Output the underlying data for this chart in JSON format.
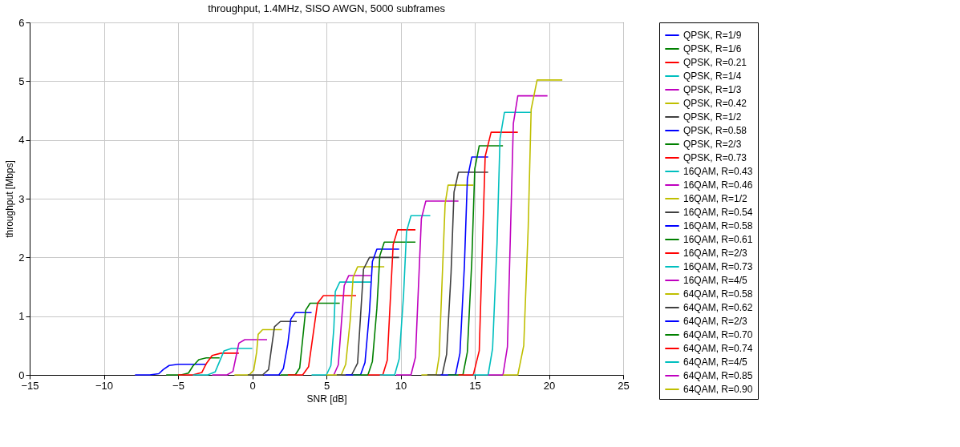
{
  "chart_data": {
    "type": "line",
    "title": "throughput, 1.4MHz, SISO AWGN, 5000 subframes",
    "xlabel": "SNR [dB]",
    "ylabel": "throughput [Mbps]",
    "xlim": [
      -15,
      25
    ],
    "xticks": [
      -15,
      -10,
      -5,
      0,
      5,
      10,
      15,
      20,
      25
    ],
    "ylim": [
      0,
      6
    ],
    "yticks": [
      0,
      1,
      2,
      3,
      4,
      5,
      6
    ],
    "grid": true,
    "legend": "right",
    "line_style": "solid",
    "series": [
      {
        "name": "QPSK, R=1/9",
        "color": "#0000ff",
        "x": [
          -7.9,
          -6.9,
          -6.3,
          -6.0,
          -5.6,
          -5.0,
          -3.1
        ],
        "values": [
          0,
          0,
          0.02,
          0.09,
          0.16,
          0.18,
          0.18
        ]
      },
      {
        "name": "QPSK, R=1/6",
        "color": "#008000",
        "x": [
          -5.8,
          -4.8,
          -4.3,
          -4.0,
          -3.6,
          -3.1,
          -2.2
        ],
        "values": [
          0,
          0,
          0.03,
          0.15,
          0.26,
          0.29,
          0.29
        ]
      },
      {
        "name": "QPSK, R=0.21",
        "color": "#ff0000",
        "x": [
          -5.0,
          -4.0,
          -3.4,
          -3.1,
          -2.7,
          -2.1,
          -0.9
        ],
        "values": [
          0,
          0,
          0.04,
          0.19,
          0.33,
          0.37,
          0.37
        ]
      },
      {
        "name": "QPSK, R=1/4",
        "color": "#00bfbf",
        "x": [
          -4.0,
          -3.0,
          -2.5,
          -2.2,
          -1.9,
          -1.4,
          0.0
        ],
        "values": [
          0,
          0,
          0.05,
          0.23,
          0.41,
          0.45,
          0.45
        ]
      },
      {
        "name": "QPSK, R=1/3",
        "color": "#bf00bf",
        "x": [
          -2.7,
          -1.7,
          -1.3,
          -1.1,
          -0.9,
          -0.5,
          1.0
        ],
        "values": [
          0,
          0,
          0.06,
          0.3,
          0.54,
          0.6,
          0.6
        ]
      },
      {
        "name": "QPSK, R=0.42",
        "color": "#bfbf00",
        "x": [
          -1.2,
          -0.2,
          0.1,
          0.3,
          0.4,
          0.7,
          2.0
        ],
        "values": [
          0,
          0,
          0.08,
          0.39,
          0.69,
          0.77,
          0.77
        ]
      },
      {
        "name": "QPSK, R=1/2",
        "color": "#404040",
        "x": [
          -0.3,
          0.7,
          1.1,
          1.3,
          1.5,
          1.9,
          3.0
        ],
        "values": [
          0,
          0,
          0.09,
          0.46,
          0.82,
          0.91,
          0.91
        ]
      },
      {
        "name": "QPSK, R=0.58",
        "color": "#0000ff",
        "x": [
          0.8,
          1.8,
          2.1,
          2.4,
          2.6,
          2.9,
          4.0
        ],
        "values": [
          0,
          0,
          0.11,
          0.53,
          0.95,
          1.06,
          1.06
        ]
      },
      {
        "name": "QPSK, R=2/3",
        "color": "#008000",
        "x": [
          1.9,
          2.9,
          3.2,
          3.4,
          3.6,
          3.9,
          5.9
        ],
        "values": [
          0,
          0,
          0.12,
          0.61,
          1.1,
          1.22,
          1.22
        ]
      },
      {
        "name": "QPSK, R=0.73",
        "color": "#ff0000",
        "x": [
          2.4,
          3.4,
          3.8,
          4.1,
          4.4,
          4.8,
          7.0
        ],
        "values": [
          0,
          0,
          0.14,
          0.68,
          1.22,
          1.35,
          1.35
        ]
      },
      {
        "name": "16QAM, R=0.43",
        "color": "#00bfbf",
        "x": [
          4.0,
          5.0,
          5.3,
          5.5,
          5.6,
          5.9,
          8.0
        ],
        "values": [
          0,
          0,
          0.16,
          0.79,
          1.42,
          1.58,
          1.58
        ]
      },
      {
        "name": "16QAM, R=0.46",
        "color": "#bf00bf",
        "x": [
          5.5,
          5.8,
          6.0,
          6.2,
          6.5,
          8.0
        ],
        "values": [
          0,
          0.17,
          0.85,
          1.52,
          1.69,
          1.69
        ]
      },
      {
        "name": "16QAM, R=1/2",
        "color": "#bfbf00",
        "x": [
          5.0,
          6.0,
          6.3,
          6.6,
          6.8,
          7.1,
          8.9
        ],
        "values": [
          0,
          0,
          0.18,
          0.92,
          1.66,
          1.84,
          1.84
        ]
      },
      {
        "name": "16QAM, R=0.54",
        "color": "#404040",
        "x": [
          5.7,
          6.7,
          7.1,
          7.3,
          7.5,
          7.9,
          9.9
        ],
        "values": [
          0,
          0,
          0.2,
          1.0,
          1.8,
          2.0,
          2.0
        ]
      },
      {
        "name": "16QAM, R=0.58",
        "color": "#0000ff",
        "x": [
          6.3,
          7.3,
          7.6,
          7.9,
          8.1,
          8.4,
          9.9
        ],
        "values": [
          0,
          0,
          0.21,
          1.07,
          1.93,
          2.14,
          2.14
        ]
      },
      {
        "name": "16QAM, R=0.61",
        "color": "#008000",
        "x": [
          6.8,
          7.8,
          8.1,
          8.4,
          8.6,
          8.9,
          11.0
        ],
        "values": [
          0,
          0,
          0.23,
          1.13,
          2.03,
          2.26,
          2.26
        ]
      },
      {
        "name": "16QAM, R=2/3",
        "color": "#ff0000",
        "x": [
          7.8,
          8.8,
          9.1,
          9.3,
          9.5,
          9.8,
          11.0
        ],
        "values": [
          0,
          0,
          0.25,
          1.24,
          2.22,
          2.47,
          2.47
        ]
      },
      {
        "name": "16QAM, R=0.73",
        "color": "#00bfbf",
        "x": [
          8.6,
          9.6,
          9.9,
          10.2,
          10.4,
          10.7,
          12.0
        ],
        "values": [
          0,
          0,
          0.27,
          1.36,
          2.44,
          2.71,
          2.71
        ]
      },
      {
        "name": "16QAM, R=4/5",
        "color": "#bf00bf",
        "x": [
          9.7,
          10.7,
          11.0,
          11.2,
          11.4,
          11.7,
          13.9
        ],
        "values": [
          0,
          0,
          0.3,
          1.48,
          2.66,
          2.96,
          2.96
        ]
      },
      {
        "name": "64QAM, R=0.58",
        "color": "#bfbf00",
        "x": [
          11.4,
          12.4,
          12.6,
          12.8,
          13.0,
          13.2,
          14.9
        ],
        "values": [
          0,
          0,
          0.32,
          1.62,
          2.91,
          3.23,
          3.23
        ]
      },
      {
        "name": "64QAM, R=0.62",
        "color": "#404040",
        "x": [
          11.8,
          12.8,
          13.1,
          13.4,
          13.6,
          13.9,
          15.9
        ],
        "values": [
          0,
          0,
          0.35,
          1.73,
          3.11,
          3.45,
          3.45
        ]
      },
      {
        "name": "64QAM, R=2/3",
        "color": "#0000ff",
        "x": [
          12.7,
          13.7,
          14.0,
          14.3,
          14.5,
          14.8,
          15.9
        ],
        "values": [
          0,
          0,
          0.37,
          1.86,
          3.34,
          3.71,
          3.71
        ]
      },
      {
        "name": "64QAM, R=0.70",
        "color": "#008000",
        "x": [
          13.2,
          14.2,
          14.5,
          14.8,
          15.0,
          15.3,
          16.9
        ],
        "values": [
          0,
          0,
          0.39,
          1.95,
          3.51,
          3.9,
          3.9
        ]
      },
      {
        "name": "64QAM, R=0.74",
        "color": "#ff0000",
        "x": [
          13.9,
          14.9,
          15.3,
          15.5,
          15.7,
          16.1,
          17.9
        ],
        "values": [
          0,
          0,
          0.41,
          2.07,
          3.72,
          4.13,
          4.13
        ]
      },
      {
        "name": "64QAM, R=4/5",
        "color": "#00bfbf",
        "x": [
          14.9,
          15.9,
          16.2,
          16.5,
          16.7,
          17.0,
          18.8
        ],
        "values": [
          0,
          0,
          0.45,
          2.24,
          4.02,
          4.47,
          4.47
        ]
      },
      {
        "name": "64QAM, R=0.85",
        "color": "#bf00bf",
        "x": [
          15.9,
          16.9,
          17.2,
          17.4,
          17.6,
          17.9,
          19.9
        ],
        "values": [
          0,
          0,
          0.48,
          2.38,
          4.28,
          4.75,
          4.75
        ]
      },
      {
        "name": "64QAM, R=0.90",
        "color": "#bfbf00",
        "x": [
          16.9,
          17.9,
          18.3,
          18.6,
          18.8,
          19.2,
          20.9
        ],
        "values": [
          0,
          0,
          0.5,
          2.51,
          4.52,
          5.02,
          5.02
        ]
      }
    ]
  }
}
